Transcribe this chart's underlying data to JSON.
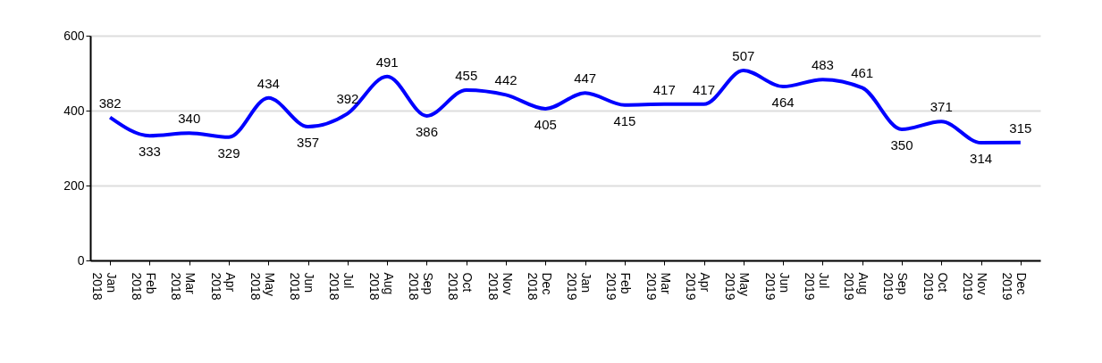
{
  "chart_data": {
    "type": "line",
    "categories": [
      "Jan 2018",
      "Feb 2018",
      "Mar 2018",
      "Apr 2018",
      "May 2018",
      "Jun 2018",
      "Jul 2018",
      "Aug 2018",
      "Sep 2018",
      "Oct 2018",
      "Nov 2018",
      "Dec 2018",
      "Jan 2019",
      "Feb 2019",
      "Mar 2019",
      "Apr 2019",
      "May 2019",
      "Jun 2019",
      "Jul 2019",
      "Aug 2019",
      "Sep 2019",
      "Oct 2019",
      "Nov 2019",
      "Dec 2019"
    ],
    "values": [
      382,
      333,
      340,
      329,
      434,
      357,
      392,
      491,
      386,
      455,
      442,
      405,
      447,
      415,
      417,
      417,
      507,
      464,
      483,
      461,
      350,
      371,
      314,
      315
    ],
    "color": "#0000ff",
    "ylim": [
      0,
      600
    ],
    "yticks": [
      0,
      200,
      400,
      600
    ],
    "grid": "y",
    "data_labels": true
  }
}
